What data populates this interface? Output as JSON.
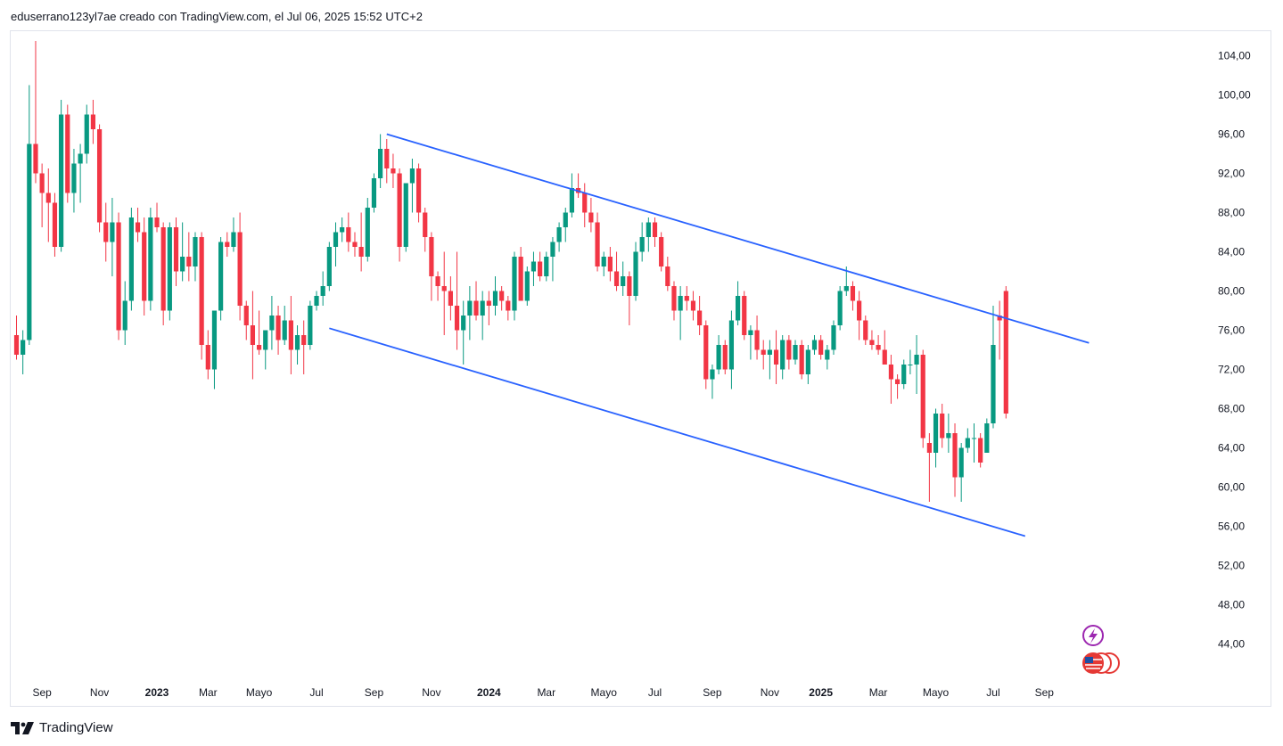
{
  "header": {
    "text": "eduserrano123yl7ae creado con TradingView.com, el Jul 06, 2025 15:52 UTC+2"
  },
  "footer": {
    "brand": "TradingView"
  },
  "colors": {
    "up": "#089981",
    "down": "#f23645",
    "trendline": "#2962ff",
    "grid_text": "#131722"
  },
  "chart_data": {
    "type": "candlestick",
    "title": "",
    "interval": "weekly",
    "y_axis": {
      "ticks": [
        "104,00",
        "100,00",
        "96,00",
        "92,00",
        "88,00",
        "84,00",
        "80,00",
        "76,00",
        "72,00",
        "68,00",
        "64,00",
        "60,00",
        "56,00",
        "52,00",
        "48,00",
        "44,00"
      ],
      "range": [
        40.5,
        106.5
      ]
    },
    "x_axis": {
      "labels": [
        {
          "text": "Sep",
          "week": 4,
          "bold": false
        },
        {
          "text": "Nov",
          "week": 13,
          "bold": false
        },
        {
          "text": "2023",
          "week": 22,
          "bold": true
        },
        {
          "text": "Mar",
          "week": 30,
          "bold": false
        },
        {
          "text": "Mayo",
          "week": 38,
          "bold": false
        },
        {
          "text": "Jul",
          "week": 47,
          "bold": false
        },
        {
          "text": "Sep",
          "week": 56,
          "bold": false
        },
        {
          "text": "Nov",
          "week": 65,
          "bold": false
        },
        {
          "text": "2024",
          "week": 74,
          "bold": true
        },
        {
          "text": "Mar",
          "week": 83,
          "bold": false
        },
        {
          "text": "Mayo",
          "week": 92,
          "bold": false
        },
        {
          "text": "Jul",
          "week": 100,
          "bold": false
        },
        {
          "text": "Sep",
          "week": 109,
          "bold": false
        },
        {
          "text": "Nov",
          "week": 118,
          "bold": false
        },
        {
          "text": "2025",
          "week": 126,
          "bold": true
        },
        {
          "text": "Mar",
          "week": 135,
          "bold": false
        },
        {
          "text": "Mayo",
          "week": 144,
          "bold": false
        },
        {
          "text": "Jul",
          "week": 153,
          "bold": false
        },
        {
          "text": "Sep",
          "week": 161,
          "bold": false
        }
      ]
    },
    "candles": [
      [
        75.5,
        77.5,
        73.0,
        73.5
      ],
      [
        73.5,
        76.0,
        71.5,
        75.0
      ],
      [
        75.0,
        101.0,
        74.5,
        95.0
      ],
      [
        95.0,
        105.5,
        91.0,
        92.0
      ],
      [
        92.0,
        93.0,
        86.5,
        90.0
      ],
      [
        90.0,
        92.5,
        85.0,
        89.0
      ],
      [
        89.0,
        90.0,
        83.5,
        84.5
      ],
      [
        84.5,
        99.5,
        84.0,
        98.0
      ],
      [
        98.0,
        99.0,
        89.0,
        90.0
      ],
      [
        90.0,
        94.5,
        88.0,
        93.0
      ],
      [
        93.0,
        95.0,
        89.0,
        94.0
      ],
      [
        94.0,
        99.0,
        93.0,
        98.0
      ],
      [
        98.0,
        99.5,
        95.0,
        96.5
      ],
      [
        96.5,
        97.0,
        86.0,
        87.0
      ],
      [
        87.0,
        89.0,
        83.0,
        85.0
      ],
      [
        85.0,
        89.5,
        81.5,
        87.0
      ],
      [
        87.0,
        88.0,
        75.0,
        76.0
      ],
      [
        76.0,
        81.0,
        74.5,
        79.0
      ],
      [
        79.0,
        88.5,
        78.0,
        87.5
      ],
      [
        87.0,
        88.5,
        85.0,
        86.0
      ],
      [
        86.0,
        87.5,
        77.5,
        79.0
      ],
      [
        79.0,
        88.5,
        78.0,
        87.5
      ],
      [
        87.5,
        89.0,
        86.0,
        86.5
      ],
      [
        86.5,
        87.0,
        76.5,
        78.0
      ],
      [
        78.0,
        87.0,
        77.0,
        86.5
      ],
      [
        86.5,
        87.5,
        80.5,
        82.0
      ],
      [
        82.0,
        87.0,
        81.0,
        83.5
      ],
      [
        83.5,
        86.0,
        81.0,
        82.5
      ],
      [
        82.5,
        86.0,
        81.0,
        85.5
      ],
      [
        85.5,
        86.0,
        73.0,
        74.5
      ],
      [
        74.5,
        76.0,
        71.0,
        72.0
      ],
      [
        72.0,
        78.0,
        70.0,
        78.0
      ],
      [
        78.0,
        85.5,
        77.0,
        85.0
      ],
      [
        85.0,
        86.0,
        83.5,
        84.5
      ],
      [
        84.5,
        87.5,
        84.0,
        86.0
      ],
      [
        86.0,
        88.0,
        77.0,
        78.5
      ],
      [
        78.5,
        79.0,
        75.0,
        76.5
      ],
      [
        76.5,
        80.0,
        71.0,
        74.5
      ],
      [
        74.5,
        78.0,
        73.5,
        74.0
      ],
      [
        74.0,
        76.0,
        72.0,
        76.0
      ],
      [
        76.0,
        79.5,
        74.0,
        77.5
      ],
      [
        77.5,
        78.5,
        73.5,
        75.0
      ],
      [
        75.0,
        78.5,
        74.5,
        77.0
      ],
      [
        77.0,
        79.5,
        71.5,
        74.0
      ],
      [
        74.0,
        76.5,
        72.5,
        75.5
      ],
      [
        75.5,
        77.0,
        71.5,
        74.5
      ],
      [
        74.5,
        79.0,
        74.0,
        78.5
      ],
      [
        78.5,
        80.0,
        78.0,
        79.5
      ],
      [
        79.5,
        82.0,
        78.5,
        80.5
      ],
      [
        80.5,
        85.0,
        80.0,
        84.5
      ],
      [
        84.5,
        87.0,
        82.5,
        86.0
      ],
      [
        86.0,
        87.5,
        85.0,
        86.5
      ],
      [
        86.5,
        88.0,
        84.0,
        85.0
      ],
      [
        85.0,
        86.0,
        83.5,
        84.5
      ],
      [
        84.5,
        88.0,
        82.0,
        83.5
      ],
      [
        83.5,
        89.5,
        83.0,
        88.5
      ],
      [
        88.5,
        92.0,
        88.0,
        91.5
      ],
      [
        91.5,
        96.0,
        90.5,
        94.5
      ],
      [
        94.5,
        95.5,
        91.0,
        92.5
      ],
      [
        92.5,
        94.0,
        90.5,
        92.0
      ],
      [
        92.0,
        92.5,
        83.0,
        84.5
      ],
      [
        84.5,
        91.0,
        84.0,
        91.0
      ],
      [
        91.0,
        93.5,
        88.0,
        92.5
      ],
      [
        92.5,
        93.0,
        87.0,
        88.0
      ],
      [
        88.0,
        88.5,
        84.0,
        85.5
      ],
      [
        85.5,
        86.0,
        79.0,
        81.5
      ],
      [
        81.5,
        82.0,
        79.0,
        80.5
      ],
      [
        80.5,
        84.0,
        75.5,
        80.0
      ],
      [
        80.0,
        81.5,
        77.0,
        78.5
      ],
      [
        78.5,
        84.0,
        74.0,
        76.0
      ],
      [
        76.0,
        79.0,
        72.5,
        77.5
      ],
      [
        77.5,
        80.5,
        75.0,
        79.0
      ],
      [
        79.0,
        81.0,
        77.0,
        77.5
      ],
      [
        77.5,
        80.0,
        75.0,
        79.0
      ],
      [
        79.0,
        80.0,
        76.5,
        78.5
      ],
      [
        78.5,
        81.5,
        77.5,
        80.0
      ],
      [
        80.0,
        80.5,
        78.0,
        79.0
      ],
      [
        79.0,
        79.5,
        77.0,
        78.0
      ],
      [
        78.0,
        84.0,
        77.0,
        83.5
      ],
      [
        83.5,
        84.5,
        79.0,
        79.0
      ],
      [
        79.0,
        82.5,
        78.5,
        82.0
      ],
      [
        82.0,
        84.0,
        80.5,
        83.0
      ],
      [
        83.0,
        84.0,
        81.0,
        81.5
      ],
      [
        81.5,
        84.0,
        81.0,
        83.5
      ],
      [
        83.5,
        85.5,
        81.0,
        85.0
      ],
      [
        85.0,
        87.0,
        84.0,
        86.5
      ],
      [
        86.5,
        88.5,
        85.0,
        88.0
      ],
      [
        88.0,
        92.0,
        87.5,
        90.5
      ],
      [
        90.5,
        92.0,
        89.5,
        90.0
      ],
      [
        90.0,
        91.0,
        86.5,
        88.0
      ],
      [
        88.0,
        89.5,
        86.0,
        87.0
      ],
      [
        87.0,
        88.0,
        82.0,
        82.5
      ],
      [
        82.5,
        84.0,
        81.5,
        83.5
      ],
      [
        83.5,
        84.5,
        81.0,
        82.0
      ],
      [
        82.0,
        84.0,
        80.0,
        80.5
      ],
      [
        80.5,
        83.0,
        79.5,
        81.5
      ],
      [
        81.5,
        82.0,
        76.5,
        79.5
      ],
      [
        79.5,
        85.0,
        79.0,
        84.0
      ],
      [
        84.0,
        87.0,
        83.0,
        85.5
      ],
      [
        85.5,
        87.5,
        84.0,
        87.0
      ],
      [
        87.0,
        87.5,
        84.5,
        85.5
      ],
      [
        85.5,
        86.0,
        82.0,
        82.5
      ],
      [
        82.5,
        83.5,
        80.0,
        80.5
      ],
      [
        80.5,
        81.0,
        77.0,
        78.0
      ],
      [
        78.0,
        80.5,
        75.0,
        79.5
      ],
      [
        79.5,
        80.5,
        78.0,
        79.0
      ],
      [
        79.0,
        80.0,
        77.0,
        78.0
      ],
      [
        78.0,
        79.5,
        75.5,
        76.5
      ],
      [
        76.5,
        77.0,
        70.0,
        71.0
      ],
      [
        71.0,
        72.5,
        69.0,
        72.0
      ],
      [
        72.0,
        75.5,
        71.5,
        74.5
      ],
      [
        74.5,
        75.0,
        71.5,
        72.0
      ],
      [
        72.0,
        78.0,
        70.0,
        77.0
      ],
      [
        77.0,
        81.0,
        76.5,
        79.5
      ],
      [
        79.5,
        80.0,
        75.0,
        75.5
      ],
      [
        75.5,
        76.5,
        73.0,
        76.0
      ],
      [
        76.0,
        77.5,
        73.0,
        74.0
      ],
      [
        74.0,
        75.0,
        72.0,
        73.5
      ],
      [
        73.5,
        75.0,
        71.0,
        74.0
      ],
      [
        74.0,
        76.0,
        70.5,
        72.5
      ],
      [
        72.0,
        75.5,
        71.0,
        75.0
      ],
      [
        75.0,
        75.5,
        72.0,
        73.0
      ],
      [
        73.0,
        75.0,
        72.5,
        74.5
      ],
      [
        74.5,
        75.0,
        71.0,
        71.5
      ],
      [
        71.5,
        74.5,
        70.5,
        74.0
      ],
      [
        74.0,
        75.5,
        73.5,
        75.0
      ],
      [
        75.0,
        75.5,
        73.0,
        73.5
      ],
      [
        73.0,
        74.5,
        72.0,
        74.0
      ],
      [
        74.0,
        77.0,
        73.5,
        76.5
      ],
      [
        76.5,
        80.5,
        76.0,
        80.0
      ],
      [
        80.0,
        82.5,
        79.5,
        80.5
      ],
      [
        80.5,
        81.0,
        78.0,
        79.0
      ],
      [
        79.0,
        80.0,
        75.0,
        77.0
      ],
      [
        77.0,
        77.5,
        74.5,
        75.0
      ],
      [
        75.0,
        76.0,
        74.0,
        74.5
      ],
      [
        74.5,
        75.5,
        73.5,
        74.0
      ],
      [
        74.0,
        76.0,
        72.5,
        72.5
      ],
      [
        72.5,
        73.5,
        68.5,
        71.0
      ],
      [
        71.0,
        71.5,
        69.0,
        70.5
      ],
      [
        70.5,
        73.0,
        70.0,
        72.5
      ],
      [
        72.5,
        74.0,
        71.5,
        72.5
      ],
      [
        72.5,
        75.5,
        69.5,
        73.5
      ],
      [
        73.5,
        74.0,
        64.0,
        65.0
      ],
      [
        64.5,
        65.5,
        58.5,
        63.5
      ],
      [
        63.5,
        68.0,
        62.0,
        67.5
      ],
      [
        67.5,
        68.5,
        64.0,
        65.0
      ],
      [
        65.0,
        67.5,
        63.5,
        65.5
      ],
      [
        65.5,
        66.5,
        59.0,
        61.0
      ],
      [
        61.0,
        64.5,
        58.5,
        64.0
      ],
      [
        64.0,
        66.0,
        63.5,
        65.0
      ],
      [
        65.0,
        66.5,
        62.5,
        65.0
      ],
      [
        65.0,
        65.5,
        62.0,
        62.5
      ],
      [
        63.5,
        67.0,
        63.5,
        66.5
      ],
      [
        66.5,
        78.5,
        66.0,
        74.5
      ],
      [
        77.5,
        79.0,
        73.0,
        77.0
      ],
      [
        80.0,
        80.5,
        67.0,
        67.5
      ]
    ],
    "trendlines": [
      {
        "name": "upper-channel-line",
        "start": {
          "week": 58,
          "price": 96.0
        },
        "end": {
          "week": 168,
          "price": 74.7
        }
      },
      {
        "name": "lower-channel-line",
        "start": {
          "week": 49,
          "price": 76.2
        },
        "end": {
          "week": 158,
          "price": 55.0
        }
      }
    ]
  }
}
